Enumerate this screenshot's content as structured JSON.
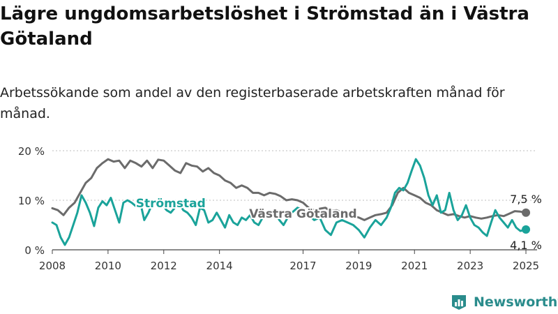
{
  "title": "Lägre ungdomsarbetslöshet i Strömstad än i Västra Götaland",
  "subtitle": "Arbetssökande som andel av den registerbaserade arbetskraften månad för månad.",
  "brand": {
    "name": "Newsworthy",
    "color": "#2a8c8c"
  },
  "chart_data": {
    "type": "line",
    "ylim": [
      0,
      20
    ],
    "xlim": [
      2008,
      2025.4
    ],
    "y_ticks": [
      {
        "value": 0,
        "label": "0 %"
      },
      {
        "value": 10,
        "label": "10 %"
      },
      {
        "value": 20,
        "label": "20 %"
      }
    ],
    "x_ticks": [
      {
        "value": 2008,
        "label": "2008"
      },
      {
        "value": 2010,
        "label": "2010"
      },
      {
        "value": 2012,
        "label": "2012"
      },
      {
        "value": 2014,
        "label": "2014"
      },
      {
        "value": 2017,
        "label": "2017"
      },
      {
        "value": 2019,
        "label": "2019"
      },
      {
        "value": 2021,
        "label": "2021"
      },
      {
        "value": 2023,
        "label": "2023"
      },
      {
        "value": 2025,
        "label": "2025"
      }
    ],
    "grid": true,
    "series": [
      {
        "name": "Västra Götaland",
        "color": "#6b6b6b",
        "end_label": "7,5 %",
        "points": [
          [
            2008.0,
            8.4
          ],
          [
            2008.2,
            8.0
          ],
          [
            2008.4,
            7.0
          ],
          [
            2008.6,
            8.5
          ],
          [
            2008.8,
            9.5
          ],
          [
            2009.0,
            11.5
          ],
          [
            2009.2,
            13.5
          ],
          [
            2009.4,
            14.5
          ],
          [
            2009.6,
            16.5
          ],
          [
            2009.8,
            17.5
          ],
          [
            2010.0,
            18.3
          ],
          [
            2010.2,
            17.8
          ],
          [
            2010.4,
            18.0
          ],
          [
            2010.6,
            16.5
          ],
          [
            2010.8,
            18.0
          ],
          [
            2011.0,
            17.5
          ],
          [
            2011.2,
            16.8
          ],
          [
            2011.4,
            18.0
          ],
          [
            2011.6,
            16.5
          ],
          [
            2011.8,
            18.2
          ],
          [
            2012.0,
            18.0
          ],
          [
            2012.2,
            17.0
          ],
          [
            2012.4,
            16.0
          ],
          [
            2012.6,
            15.5
          ],
          [
            2012.8,
            17.5
          ],
          [
            2013.0,
            17.0
          ],
          [
            2013.2,
            16.8
          ],
          [
            2013.4,
            15.8
          ],
          [
            2013.6,
            16.5
          ],
          [
            2013.8,
            15.5
          ],
          [
            2014.0,
            15.0
          ],
          [
            2014.2,
            14.0
          ],
          [
            2014.4,
            13.5
          ],
          [
            2014.6,
            12.5
          ],
          [
            2014.8,
            13.0
          ],
          [
            2015.0,
            12.5
          ],
          [
            2015.2,
            11.5
          ],
          [
            2015.4,
            11.5
          ],
          [
            2015.6,
            11.0
          ],
          [
            2015.8,
            11.5
          ],
          [
            2016.0,
            11.3
          ],
          [
            2016.2,
            10.8
          ],
          [
            2016.4,
            10.0
          ],
          [
            2016.6,
            10.2
          ],
          [
            2016.8,
            10.0
          ],
          [
            2017.0,
            9.5
          ],
          [
            2017.2,
            8.5
          ],
          [
            2017.4,
            8.0
          ],
          [
            2017.6,
            8.3
          ],
          [
            2017.8,
            8.5
          ],
          [
            2018.0,
            7.8
          ],
          [
            2018.2,
            8.0
          ],
          [
            2018.4,
            7.5
          ],
          [
            2018.6,
            7.2
          ],
          [
            2018.8,
            6.8
          ],
          [
            2019.0,
            6.5
          ],
          [
            2019.2,
            6.0
          ],
          [
            2019.4,
            6.5
          ],
          [
            2019.6,
            7.0
          ],
          [
            2019.8,
            7.2
          ],
          [
            2020.0,
            7.5
          ],
          [
            2020.2,
            9.0
          ],
          [
            2020.4,
            11.5
          ],
          [
            2020.6,
            12.5
          ],
          [
            2020.8,
            11.5
          ],
          [
            2021.0,
            11.0
          ],
          [
            2021.2,
            10.5
          ],
          [
            2021.4,
            9.5
          ],
          [
            2021.6,
            9.0
          ],
          [
            2021.8,
            8.0
          ],
          [
            2022.0,
            7.5
          ],
          [
            2022.2,
            7.0
          ],
          [
            2022.4,
            7.2
          ],
          [
            2022.6,
            6.8
          ],
          [
            2022.8,
            6.5
          ],
          [
            2023.0,
            6.8
          ],
          [
            2023.2,
            6.5
          ],
          [
            2023.4,
            6.3
          ],
          [
            2023.6,
            6.5
          ],
          [
            2023.8,
            6.8
          ],
          [
            2024.0,
            7.0
          ],
          [
            2024.2,
            6.8
          ],
          [
            2024.4,
            7.3
          ],
          [
            2024.6,
            7.8
          ],
          [
            2024.8,
            7.7
          ],
          [
            2025.0,
            7.5
          ]
        ]
      },
      {
        "name": "Strömstad",
        "color": "#1aa39a",
        "end_label": "4,1 %",
        "points": [
          [
            2008.0,
            5.5
          ],
          [
            2008.15,
            5.0
          ],
          [
            2008.3,
            2.5
          ],
          [
            2008.45,
            1.0
          ],
          [
            2008.6,
            2.5
          ],
          [
            2008.75,
            5.0
          ],
          [
            2008.9,
            7.5
          ],
          [
            2009.05,
            11.0
          ],
          [
            2009.2,
            9.5
          ],
          [
            2009.35,
            7.5
          ],
          [
            2009.5,
            4.8
          ],
          [
            2009.65,
            8.5
          ],
          [
            2009.8,
            9.8
          ],
          [
            2009.95,
            9.0
          ],
          [
            2010.1,
            10.5
          ],
          [
            2010.25,
            8.0
          ],
          [
            2010.4,
            5.5
          ],
          [
            2010.55,
            9.5
          ],
          [
            2010.7,
            10.0
          ],
          [
            2010.85,
            9.5
          ],
          [
            2011.0,
            8.8
          ],
          [
            2011.15,
            9.8
          ],
          [
            2011.3,
            6.0
          ],
          [
            2011.45,
            7.5
          ],
          [
            2011.6,
            9.5
          ],
          [
            2011.75,
            9.8
          ],
          [
            2011.9,
            9.5
          ],
          [
            2012.1,
            8.0
          ],
          [
            2012.25,
            7.5
          ],
          [
            2012.4,
            8.5
          ],
          [
            2012.55,
            9.5
          ],
          [
            2012.7,
            8.0
          ],
          [
            2012.85,
            7.5
          ],
          [
            2013.0,
            6.5
          ],
          [
            2013.15,
            5.0
          ],
          [
            2013.3,
            8.5
          ],
          [
            2013.45,
            8.0
          ],
          [
            2013.6,
            5.5
          ],
          [
            2013.75,
            6.0
          ],
          [
            2013.9,
            7.5
          ],
          [
            2014.05,
            6.0
          ],
          [
            2014.2,
            4.5
          ],
          [
            2014.35,
            7.0
          ],
          [
            2014.5,
            5.5
          ],
          [
            2014.65,
            5.0
          ],
          [
            2014.8,
            6.5
          ],
          [
            2014.95,
            6.0
          ],
          [
            2015.1,
            7.0
          ],
          [
            2015.25,
            5.5
          ],
          [
            2015.4,
            5.0
          ],
          [
            2015.55,
            6.5
          ],
          [
            2015.7,
            7.5
          ],
          [
            2015.85,
            6.5
          ],
          [
            2016.0,
            7.5
          ],
          [
            2016.15,
            6.0
          ],
          [
            2016.3,
            5.0
          ],
          [
            2016.45,
            6.5
          ],
          [
            2016.6,
            7.5
          ],
          [
            2016.8,
            8.5
          ],
          [
            2017.0,
            8.0
          ],
          [
            2017.2,
            7.0
          ],
          [
            2017.4,
            6.0
          ],
          [
            2017.6,
            6.5
          ],
          [
            2017.8,
            4.0
          ],
          [
            2018.0,
            3.0
          ],
          [
            2018.2,
            5.5
          ],
          [
            2018.4,
            6.0
          ],
          [
            2018.6,
            5.5
          ],
          [
            2018.8,
            5.0
          ],
          [
            2019.0,
            4.0
          ],
          [
            2019.2,
            2.5
          ],
          [
            2019.4,
            4.5
          ],
          [
            2019.6,
            6.0
          ],
          [
            2019.8,
            5.0
          ],
          [
            2020.0,
            6.5
          ],
          [
            2020.15,
            8.5
          ],
          [
            2020.3,
            11.5
          ],
          [
            2020.45,
            12.5
          ],
          [
            2020.6,
            12.0
          ],
          [
            2020.75,
            13.5
          ],
          [
            2020.9,
            16.0
          ],
          [
            2021.05,
            18.3
          ],
          [
            2021.2,
            17.0
          ],
          [
            2021.35,
            14.5
          ],
          [
            2021.5,
            11.0
          ],
          [
            2021.65,
            9.0
          ],
          [
            2021.8,
            11.0
          ],
          [
            2021.95,
            7.5
          ],
          [
            2022.1,
            8.0
          ],
          [
            2022.25,
            11.5
          ],
          [
            2022.4,
            8.0
          ],
          [
            2022.55,
            6.0
          ],
          [
            2022.7,
            7.0
          ],
          [
            2022.85,
            9.0
          ],
          [
            2023.0,
            6.5
          ],
          [
            2023.15,
            5.0
          ],
          [
            2023.3,
            4.5
          ],
          [
            2023.45,
            3.5
          ],
          [
            2023.6,
            2.8
          ],
          [
            2023.75,
            5.5
          ],
          [
            2023.9,
            8.0
          ],
          [
            2024.05,
            6.5
          ],
          [
            2024.2,
            5.5
          ],
          [
            2024.35,
            4.5
          ],
          [
            2024.5,
            6.0
          ],
          [
            2024.65,
            4.5
          ],
          [
            2024.8,
            3.8
          ],
          [
            2025.0,
            4.1
          ]
        ]
      }
    ],
    "annotations": [
      {
        "series": "Strömstad",
        "text": "Strömstad",
        "x": 2012.25,
        "y": 8.6,
        "color": "#1aa39a"
      },
      {
        "series": "Västra Götaland",
        "text": "Västra Götaland",
        "x": 2017.0,
        "y": 6.5,
        "color": "#6b6b6b"
      }
    ]
  }
}
